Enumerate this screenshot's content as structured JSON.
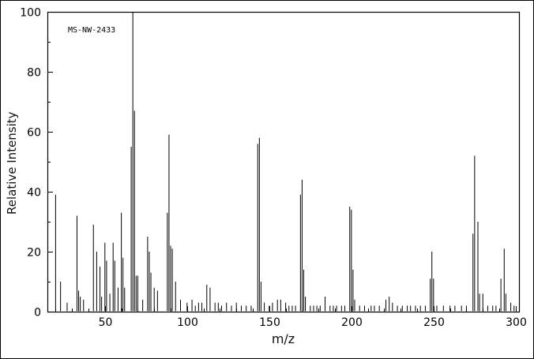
{
  "figure": {
    "kind": "mass-spectrum-plot",
    "background": "#ffffff",
    "foreground": "#000000"
  },
  "chart_data": {
    "type": "bar",
    "chart_kind": "mass-spectrum-stick-plot",
    "title": "",
    "annotation": "MS-NW-2433",
    "xlabel": "m/z",
    "ylabel": "Relative Intensity",
    "xlim": [
      15,
      302
    ],
    "ylim": [
      0,
      100
    ],
    "xticks": [
      50,
      100,
      150,
      200,
      250,
      300
    ],
    "yticks": [
      0,
      20,
      40,
      60,
      80,
      100
    ],
    "minor_tick_step_x": 10,
    "minor_tick_step_y": 10,
    "grid": false,
    "legend": false,
    "peak_color": "#000000",
    "peaks": [
      [
        20,
        39
      ],
      [
        23,
        10
      ],
      [
        27,
        3
      ],
      [
        33,
        32
      ],
      [
        34,
        7
      ],
      [
        35,
        5
      ],
      [
        37,
        4
      ],
      [
        43,
        29
      ],
      [
        45,
        20
      ],
      [
        47,
        15
      ],
      [
        48,
        5
      ],
      [
        50,
        23
      ],
      [
        51,
        17
      ],
      [
        53,
        6
      ],
      [
        55,
        23
      ],
      [
        56,
        17
      ],
      [
        58,
        8
      ],
      [
        60,
        33
      ],
      [
        61,
        18
      ],
      [
        62,
        8
      ],
      [
        66,
        55
      ],
      [
        67,
        100
      ],
      [
        68,
        67
      ],
      [
        69,
        12
      ],
      [
        70,
        12
      ],
      [
        73,
        4
      ],
      [
        76,
        25
      ],
      [
        77,
        20
      ],
      [
        78,
        13
      ],
      [
        80,
        8
      ],
      [
        82,
        7
      ],
      [
        88,
        33
      ],
      [
        89,
        59
      ],
      [
        90,
        22
      ],
      [
        91,
        21
      ],
      [
        93,
        10
      ],
      [
        96,
        4
      ],
      [
        100,
        3
      ],
      [
        103,
        4
      ],
      [
        105,
        2
      ],
      [
        107,
        3
      ],
      [
        109,
        3
      ],
      [
        112,
        9
      ],
      [
        114,
        8
      ],
      [
        117,
        3
      ],
      [
        119,
        3
      ],
      [
        121,
        2
      ],
      [
        124,
        3
      ],
      [
        127,
        2
      ],
      [
        130,
        3
      ],
      [
        133,
        2
      ],
      [
        136,
        2
      ],
      [
        139,
        2
      ],
      [
        143,
        56
      ],
      [
        144,
        58
      ],
      [
        145,
        10
      ],
      [
        147,
        3
      ],
      [
        150,
        2
      ],
      [
        152,
        3
      ],
      [
        155,
        4
      ],
      [
        157,
        4
      ],
      [
        160,
        3
      ],
      [
        162,
        2
      ],
      [
        164,
        2
      ],
      [
        166,
        2
      ],
      [
        169,
        39
      ],
      [
        170,
        44
      ],
      [
        171,
        14
      ],
      [
        172,
        5
      ],
      [
        175,
        2
      ],
      [
        177,
        2
      ],
      [
        179,
        2
      ],
      [
        181,
        2
      ],
      [
        184,
        5
      ],
      [
        187,
        2
      ],
      [
        189,
        2
      ],
      [
        191,
        2
      ],
      [
        194,
        2
      ],
      [
        196,
        2
      ],
      [
        199,
        35
      ],
      [
        200,
        34
      ],
      [
        201,
        14
      ],
      [
        202,
        4
      ],
      [
        205,
        2
      ],
      [
        208,
        2
      ],
      [
        212,
        2
      ],
      [
        214,
        2
      ],
      [
        217,
        2
      ],
      [
        221,
        4
      ],
      [
        223,
        5
      ],
      [
        225,
        3
      ],
      [
        228,
        2
      ],
      [
        231,
        2
      ],
      [
        234,
        2
      ],
      [
        236,
        2
      ],
      [
        239,
        2
      ],
      [
        242,
        2
      ],
      [
        245,
        2
      ],
      [
        248,
        11
      ],
      [
        249,
        20
      ],
      [
        250,
        11
      ],
      [
        252,
        2
      ],
      [
        256,
        2
      ],
      [
        260,
        2
      ],
      [
        263,
        2
      ],
      [
        267,
        2
      ],
      [
        270,
        2
      ],
      [
        274,
        26
      ],
      [
        275,
        52
      ],
      [
        277,
        30
      ],
      [
        278,
        6
      ],
      [
        280,
        6
      ],
      [
        283,
        2
      ],
      [
        286,
        2
      ],
      [
        288,
        2
      ],
      [
        291,
        11
      ],
      [
        293,
        21
      ],
      [
        294,
        6
      ],
      [
        297,
        3
      ],
      [
        299,
        2
      ]
    ]
  }
}
